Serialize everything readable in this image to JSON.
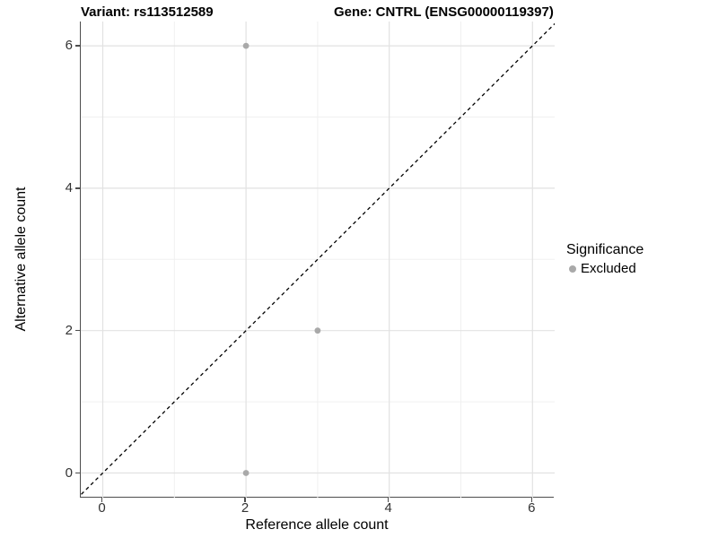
{
  "chart_data": {
    "type": "scatter",
    "title_left": "Variant: rs113512589",
    "title_right": "Gene: CNTRL (ENSG00000119397)",
    "xlabel": "Reference allele count",
    "ylabel": "Alternative allele count",
    "xlim": [
      -0.32,
      6.32
    ],
    "ylim": [
      -0.35,
      6.35
    ],
    "x_major_ticks": [
      0,
      2,
      4,
      6
    ],
    "y_major_ticks": [
      0,
      2,
      4,
      6
    ],
    "x_minor_ticks": [
      1,
      3,
      5
    ],
    "y_minor_ticks": [
      1,
      3,
      5
    ],
    "grid": true,
    "legend_position": "right",
    "reference_line": {
      "type": "identity",
      "slope": 1,
      "intercept": 0,
      "style": "dashed",
      "color": "#000000"
    },
    "series": [
      {
        "name": "Excluded",
        "color": "#a9a9a9",
        "points": [
          {
            "x": 2,
            "y": 6
          },
          {
            "x": 3,
            "y": 2
          },
          {
            "x": 2,
            "y": 0
          }
        ]
      }
    ],
    "legend": {
      "title": "Significance",
      "items": [
        {
          "label": "Excluded",
          "color": "#a9a9a9"
        }
      ]
    }
  },
  "colors": {
    "background": "#ffffff",
    "grid_major": "#e2e2e2",
    "grid_minor": "#f0f0f0",
    "axis_line": "#4d4d4d",
    "tick_text": "#333333",
    "point": "#a9a9a9",
    "reference_line": "#000000"
  }
}
